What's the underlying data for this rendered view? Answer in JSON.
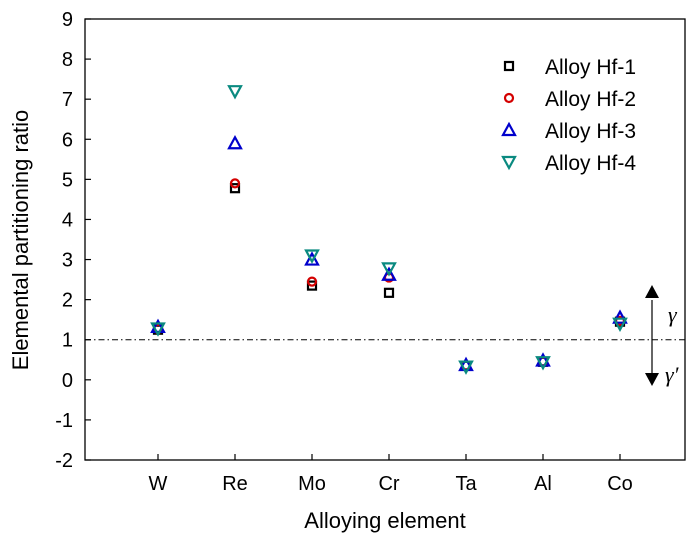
{
  "chart_data": {
    "type": "scatter",
    "xlabel": "Alloying element",
    "ylabel": "Elemental partitioning ratio",
    "categories": [
      "W",
      "Re",
      "Mo",
      "Cr",
      "Ta",
      "Al",
      "Co"
    ],
    "ylim": [
      -2,
      9
    ],
    "yticks": [
      "-2",
      "-1",
      "0",
      "1",
      "2",
      "3",
      "4",
      "5",
      "6",
      "7",
      "8",
      "9"
    ],
    "reference_line": {
      "y": 1,
      "style": "dash-dot"
    },
    "legend_position": "top-right",
    "series": [
      {
        "name": "Alloy Hf-1",
        "marker": "square",
        "color": "#000000",
        "values": [
          1.25,
          4.78,
          2.35,
          2.17,
          0.35,
          0.45,
          1.45
        ]
      },
      {
        "name": "Alloy Hf-2",
        "marker": "circle",
        "color": "#d40000",
        "values": [
          1.27,
          4.9,
          2.45,
          2.55,
          0.36,
          0.46,
          1.47
        ]
      },
      {
        "name": "Alloy Hf-3",
        "marker": "triangle-up",
        "color": "#0000cc",
        "values": [
          1.32,
          5.9,
          3.0,
          2.62,
          0.37,
          0.48,
          1.55
        ]
      },
      {
        "name": "Alloy Hf-4",
        "marker": "triangle-down",
        "color": "#0a8a80",
        "values": [
          1.28,
          7.2,
          3.1,
          2.78,
          0.33,
          0.44,
          1.4
        ]
      }
    ],
    "annotations": {
      "above": "γ",
      "below": "γ′"
    }
  }
}
